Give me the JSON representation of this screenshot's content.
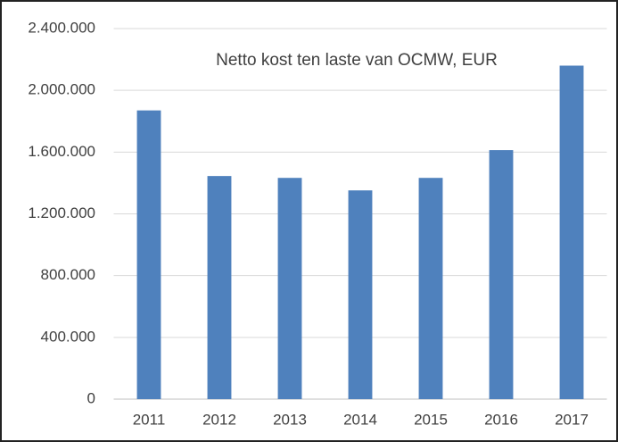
{
  "chart_data": {
    "type": "bar",
    "title": "Netto kost ten laste van OCMW, EUR",
    "categories": [
      "2011",
      "2012",
      "2013",
      "2014",
      "2015",
      "2016",
      "2017"
    ],
    "values": [
      1870000,
      1445000,
      1433000,
      1352000,
      1433000,
      1613000,
      2160000
    ],
    "color": "#4f81bd",
    "ylim": [
      0,
      2400000
    ],
    "yticks": [
      0,
      {
        "value": 400000,
        "label": "400.000"
      },
      {
        "value": 800000,
        "label": "800.000"
      },
      {
        "value": 1200000,
        "label": "1.200.000"
      },
      {
        "value": 1600000,
        "label": "1.600.000"
      },
      {
        "value": 2000000,
        "label": "2.000.000"
      },
      {
        "value": 2400000,
        "label": "2.400.000"
      }
    ],
    "grid": true
  }
}
